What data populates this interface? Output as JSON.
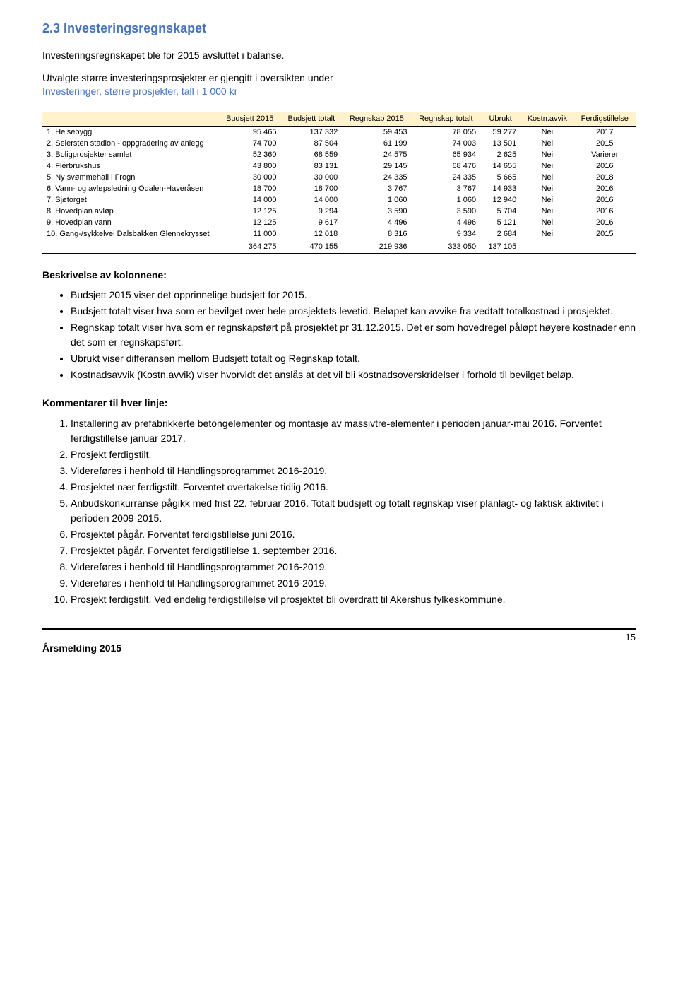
{
  "heading_number": "2.3",
  "heading_title": "Investeringsregnskapet",
  "heading_color": "#4372c4",
  "intro_line1": "Investeringsregnskapet ble for 2015 avsluttet i balanse.",
  "intro_line2a": "Utvalgte større investeringsprosjekter er gjengitt i oversikten under ",
  "intro_line2_link": "Investeringer, større prosjekter, tall i 1 000 kr",
  "table": {
    "header_bg": "#fff2cc",
    "columns": [
      "",
      "Budsjett 2015",
      "Budsjett totalt",
      "Regnskap 2015",
      "Regnskap totalt",
      "Ubrukt",
      "Kostn.avvik",
      "Ferdigstillelse"
    ],
    "rows": [
      {
        "label": "1. Helsebygg",
        "b15": "95 465",
        "bt": "137 332",
        "r15": "59 453",
        "rt": "78 055",
        "u": "59 277",
        "ka": "Nei",
        "f": "2017"
      },
      {
        "label": "2. Seiersten stadion - oppgradering av anlegg",
        "b15": "74 700",
        "bt": "87 504",
        "r15": "61 199",
        "rt": "74 003",
        "u": "13 501",
        "ka": "Nei",
        "f": "2015"
      },
      {
        "label": "3. Boligprosjekter samlet",
        "b15": "52 360",
        "bt": "68 559",
        "r15": "24 575",
        "rt": "65 934",
        "u": "2 625",
        "ka": "Nei",
        "f": "Varierer"
      },
      {
        "label": "4. Flerbrukshus",
        "b15": "43 800",
        "bt": "83 131",
        "r15": "29 145",
        "rt": "68 476",
        "u": "14 655",
        "ka": "Nei",
        "f": "2016"
      },
      {
        "label": "5. Ny svømmehall i Frogn",
        "b15": "30 000",
        "bt": "30 000",
        "r15": "24 335",
        "rt": "24 335",
        "u": "5 665",
        "ka": "Nei",
        "f": "2018"
      },
      {
        "label": "6. Vann- og avløpsledning Odalen-Haveråsen",
        "b15": "18 700",
        "bt": "18 700",
        "r15": "3 767",
        "rt": "3 767",
        "u": "14 933",
        "ka": "Nei",
        "f": "2016"
      },
      {
        "label": "7. Sjøtorget",
        "b15": "14 000",
        "bt": "14 000",
        "r15": "1 060",
        "rt": "1 060",
        "u": "12 940",
        "ka": "Nei",
        "f": "2016"
      },
      {
        "label": "8. Hovedplan avløp",
        "b15": "12 125",
        "bt": "9 294",
        "r15": "3 590",
        "rt": "3 590",
        "u": "5 704",
        "ka": "Nei",
        "f": "2016"
      },
      {
        "label": "9. Hovedplan vann",
        "b15": "12 125",
        "bt": "9 617",
        "r15": "4 496",
        "rt": "4 496",
        "u": "5 121",
        "ka": "Nei",
        "f": "2016"
      },
      {
        "label": "10. Gang-/sykkelvei Dalsbakken Glennekrysset",
        "b15": "11 000",
        "bt": "12 018",
        "r15": "8 316",
        "rt": "9 334",
        "u": "2 684",
        "ka": "Nei",
        "f": "2015"
      }
    ],
    "totals": {
      "b15": "364 275",
      "bt": "470 155",
      "r15": "219 936",
      "rt": "333 050",
      "u": "137 105",
      "ka": "",
      "f": ""
    }
  },
  "kolonne_head": "Beskrivelse av kolonnene:",
  "kolonne_bullets": [
    "Budsjett 2015 viser det opprinnelige budsjett for 2015.",
    "Budsjett totalt viser hva som er bevilget over hele prosjektets levetid. Beløpet kan avvike fra vedtatt totalkostnad i prosjektet.",
    "Regnskap totalt viser hva som er regnskapsført på prosjektet pr 31.12.2015. Det er som hovedregel påløpt høyere kostnader enn det som er regnskapsført.",
    "Ubrukt viser differansen mellom Budsjett totalt og Regnskap totalt.",
    "Kostnadsavvik (Kostn.avvik) viser hvorvidt det anslås at det vil bli kostnadsoverskridelser i forhold til bevilget beløp."
  ],
  "kommentar_head": "Kommentarer til hver linje:",
  "kommentar_items": [
    "Installering av prefabrikkerte betongelementer og montasje av massivtre-elementer i perioden januar-mai 2016. Forventet ferdigstillelse januar 2017.",
    "Prosjekt ferdigstilt.",
    "Videreføres i henhold til Handlingsprogrammet 2016-2019.",
    "Prosjektet nær ferdigstilt. Forventet overtakelse tidlig 2016.",
    "Anbudskonkurranse pågikk med frist 22. februar 2016. Totalt budsjett og totalt regnskap viser planlagt- og faktisk aktivitet i perioden 2009-2015.",
    "Prosjektet pågår. Forventet ferdigstillelse juni 2016.",
    "Prosjektet pågår. Forventet ferdigstillelse 1. september 2016.",
    "Videreføres i henhold til Handlingsprogrammet 2016-2019.",
    "Videreføres i henhold til Handlingsprogrammet 2016-2019.",
    "Prosjekt ferdigstilt. Ved endelig ferdigstillelse vil prosjektet bli overdratt til Akershus fylkeskommune."
  ],
  "footer_page": "15",
  "footer_label": "Årsmelding 2015"
}
